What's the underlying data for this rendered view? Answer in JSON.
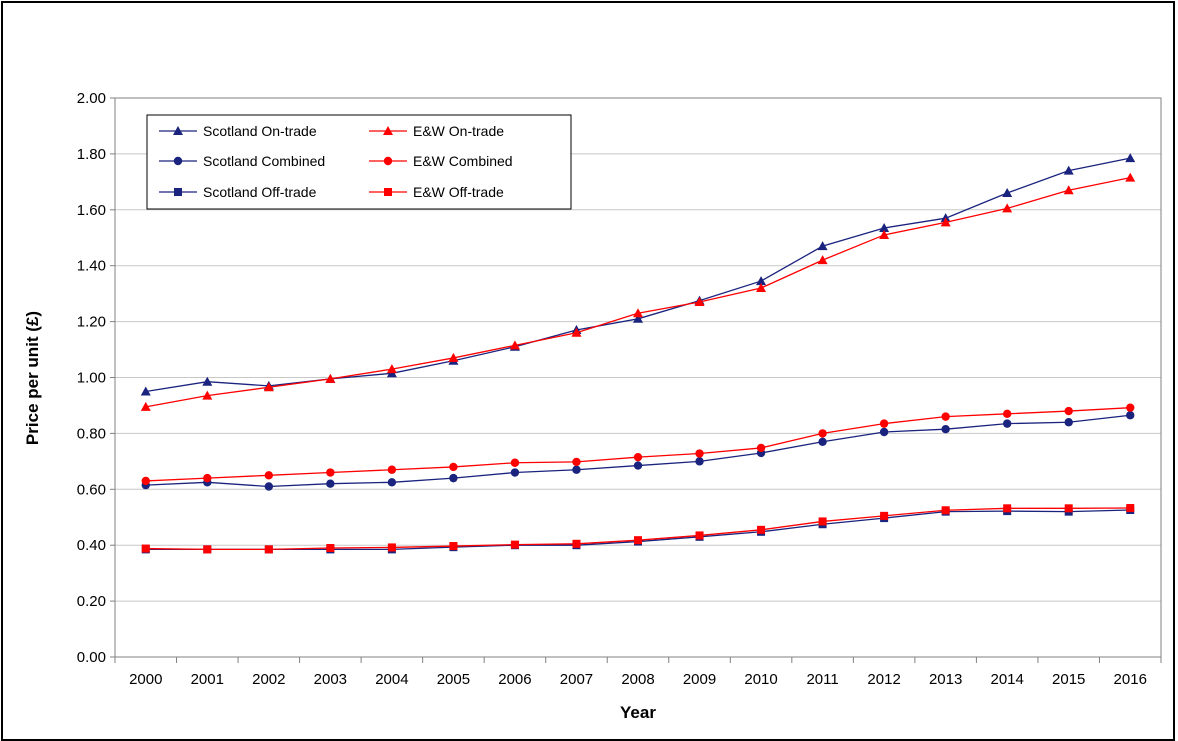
{
  "chart_data": {
    "type": "line",
    "title": "",
    "xlabel": "Year",
    "ylabel": "Price per unit (£)",
    "ylim": [
      0,
      2
    ],
    "y_ticks": [
      "0.00",
      "0.20",
      "0.40",
      "0.60",
      "0.80",
      "1.00",
      "1.20",
      "1.40",
      "1.60",
      "1.80",
      "2.00"
    ],
    "grid": "horizontal",
    "legend_position": "top-left",
    "categories": [
      "2000",
      "2001",
      "2002",
      "2003",
      "2004",
      "2005",
      "2006",
      "2007",
      "2008",
      "2009",
      "2010",
      "2011",
      "2012",
      "2013",
      "2014",
      "2015",
      "2016"
    ],
    "series": [
      {
        "name": "Scotland On-trade",
        "color": "#1a237e",
        "marker": "triangle",
        "values": [
          0.95,
          0.985,
          0.97,
          0.995,
          1.015,
          1.06,
          1.11,
          1.17,
          1.21,
          1.275,
          1.345,
          1.47,
          1.535,
          1.57,
          1.66,
          1.74,
          1.785
        ]
      },
      {
        "name": "E&W On-trade",
        "color": "#ff0000",
        "marker": "triangle",
        "values": [
          0.895,
          0.935,
          0.965,
          0.995,
          1.03,
          1.07,
          1.115,
          1.16,
          1.23,
          1.27,
          1.32,
          1.42,
          1.51,
          1.555,
          1.605,
          1.67,
          1.715
        ]
      },
      {
        "name": "Scotland Combined",
        "color": "#1a237e",
        "marker": "circle",
        "values": [
          0.615,
          0.625,
          0.61,
          0.62,
          0.625,
          0.64,
          0.66,
          0.67,
          0.685,
          0.7,
          0.73,
          0.77,
          0.805,
          0.815,
          0.835,
          0.84,
          0.865
        ]
      },
      {
        "name": "E&W Combined",
        "color": "#ff0000",
        "marker": "circle",
        "values": [
          0.63,
          0.64,
          0.65,
          0.66,
          0.67,
          0.68,
          0.695,
          0.698,
          0.715,
          0.728,
          0.748,
          0.8,
          0.835,
          0.86,
          0.87,
          0.88,
          0.892
        ]
      },
      {
        "name": "Scotland Off-trade",
        "color": "#1a237e",
        "marker": "square",
        "values": [
          0.385,
          0.385,
          0.385,
          0.385,
          0.385,
          0.393,
          0.4,
          0.4,
          0.413,
          0.43,
          0.448,
          0.475,
          0.497,
          0.52,
          0.522,
          0.52,
          0.526
        ]
      },
      {
        "name": "E&W Off-trade",
        "color": "#ff0000",
        "marker": "square",
        "values": [
          0.388,
          0.385,
          0.385,
          0.39,
          0.392,
          0.397,
          0.402,
          0.405,
          0.418,
          0.435,
          0.455,
          0.485,
          0.505,
          0.525,
          0.532,
          0.532,
          0.533
        ]
      }
    ],
    "legend_order": [
      0,
      1,
      2,
      3,
      4,
      5
    ]
  }
}
